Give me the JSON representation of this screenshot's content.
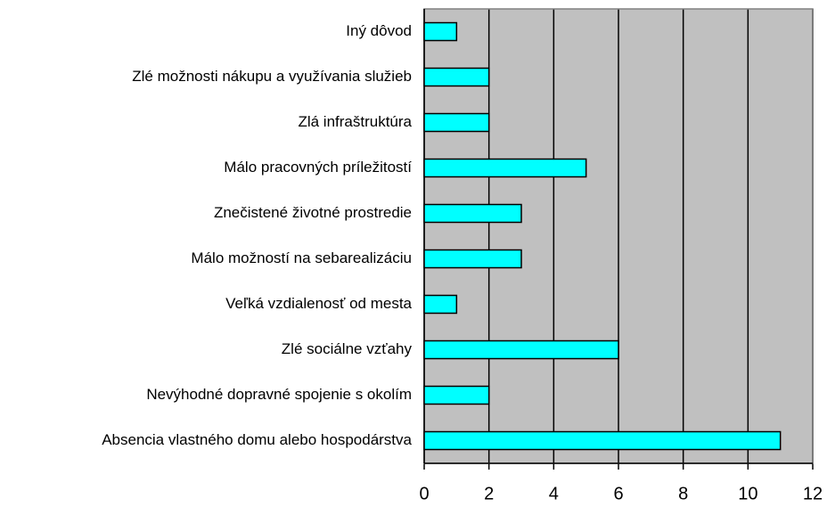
{
  "chart_data": {
    "type": "barh",
    "categories": [
      "Iný dôvod",
      "Zlé možnosti nákupu a využívania služieb",
      "Zlá infraštruktúra",
      "Málo pracovných príležitostí",
      "Znečistené životné prostredie",
      "Málo možností na sebarealizáciu",
      "Veľká vzdialenosť od mesta",
      "Zlé sociálne vzťahy",
      "Nevýhodné dopravné spojenie s okolím",
      "Absencia vlastného domu alebo hospodárstva"
    ],
    "values": [
      1,
      2,
      2,
      5,
      3,
      3,
      1,
      6,
      2,
      11
    ],
    "color": "#00ffff",
    "xlim": [
      0,
      12
    ],
    "xticks": [
      0,
      2,
      4,
      6,
      8,
      10,
      12
    ],
    "grid": true
  }
}
